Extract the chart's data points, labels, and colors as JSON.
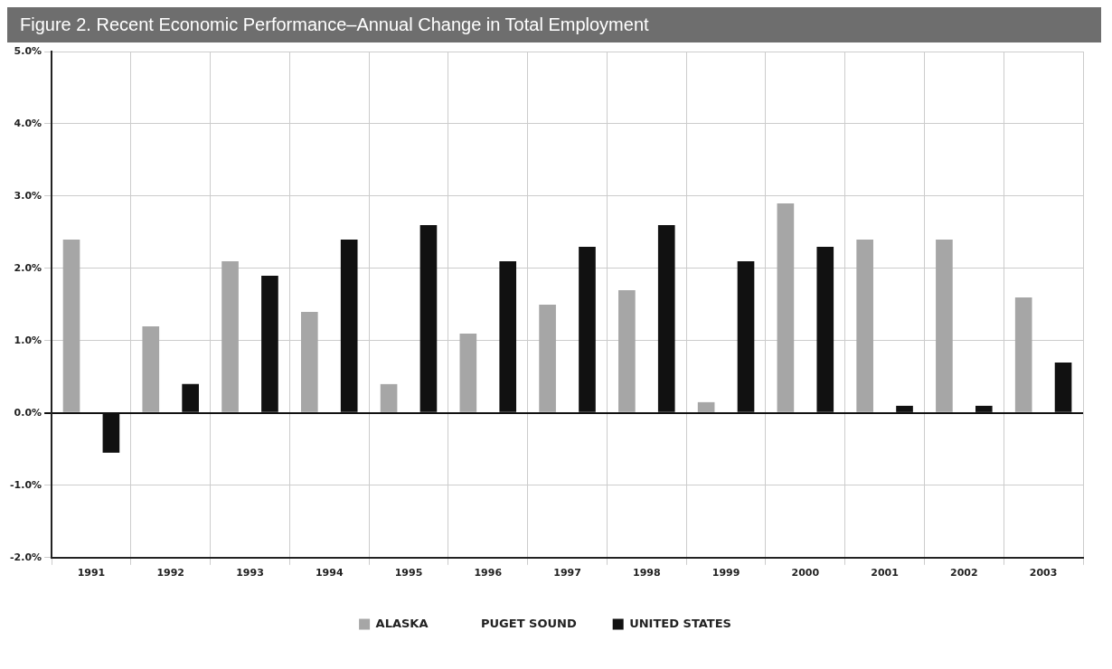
{
  "chart_data": {
    "type": "bar",
    "title": "Figure 2. Recent Economic Performance–Annual Change in Total Employment",
    "categories": [
      "1991",
      "1992",
      "1993",
      "1994",
      "1995",
      "1996",
      "1997",
      "1998",
      "1999",
      "2000",
      "2001",
      "2002",
      "2003"
    ],
    "series": [
      {
        "name": "ALASKA",
        "color": "#a6a6a6",
        "values": [
          2.4,
          1.2,
          2.1,
          1.4,
          0.4,
          1.1,
          1.5,
          1.7,
          0.15,
          2.9,
          2.4,
          2.4,
          1.6
        ]
      },
      {
        "name": "PUGET SOUND",
        "values": [
          null,
          null,
          null,
          null,
          null,
          null,
          null,
          null,
          null,
          null,
          null,
          null,
          null
        ]
      },
      {
        "name": "UNITED STATES",
        "color": "#111111",
        "values": [
          -0.55,
          0.4,
          1.9,
          2.4,
          2.6,
          2.1,
          2.3,
          2.6,
          2.1,
          2.3,
          0.1,
          0.1,
          0.7
        ]
      }
    ],
    "ylim": [
      -2,
      5
    ],
    "yticks": [
      {
        "value": -2,
        "label": "-2.0%"
      },
      {
        "value": -1,
        "label": "-1.0%"
      },
      {
        "value": 0,
        "label": "0.0%"
      },
      {
        "value": 1,
        "label": "1.0%"
      },
      {
        "value": 2,
        "label": "2.0%"
      },
      {
        "value": 3,
        "label": "3.0%"
      },
      {
        "value": 4,
        "label": "4.0%"
      },
      {
        "value": 5,
        "label": "5.0%"
      }
    ],
    "grid": true,
    "legend": "bottom"
  }
}
